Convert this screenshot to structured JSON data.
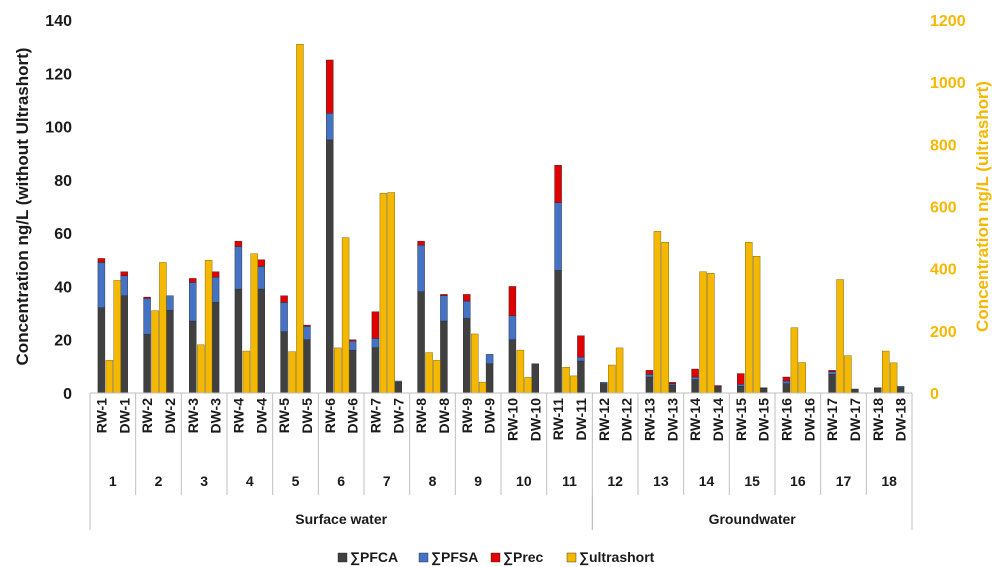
{
  "chart_data": {
    "type": "bar",
    "stacked": true,
    "dual_axis": true,
    "ylabel_left": "Concentration ng/L (without Ultrashort)",
    "ylabel_right": "Concentration ng/L (ultrashort)",
    "ylim_left": [
      0,
      140
    ],
    "ylim_right": [
      0,
      1200
    ],
    "yticks_left": [
      "0",
      "20",
      "40",
      "60",
      "80",
      "100",
      "120",
      "140"
    ],
    "yticks_right": [
      "0",
      "200",
      "400",
      "600",
      "800",
      "1000",
      "1200"
    ],
    "categories": [
      "RW-1",
      "DW-1",
      "RW-2",
      "DW-2",
      "RW-3",
      "DW-3",
      "RW-4",
      "DW-4",
      "RW-5",
      "DW-5",
      "RW-6",
      "DW-6",
      "RW-7",
      "DW-7",
      "RW-8",
      "DW-8",
      "RW-9",
      "DW-9",
      "RW-10",
      "DW-10",
      "RW-11",
      "DW-11",
      "RW-12",
      "DW-12",
      "RW-13",
      "DW-13",
      "RW-14",
      "DW-14",
      "RW-15",
      "DW-15",
      "RW-16",
      "DW-16",
      "RW-17",
      "DW-17",
      "RW-18",
      "DW-18"
    ],
    "site_labels": [
      "1",
      "2",
      "3",
      "4",
      "5",
      "6",
      "7",
      "8",
      "9",
      "10",
      "11",
      "12",
      "13",
      "14",
      "15",
      "16",
      "17",
      "18"
    ],
    "groups": [
      {
        "label": "Surface water",
        "from_site": 1,
        "to_site": 11
      },
      {
        "label": "Groundwater",
        "from_site": 12,
        "to_site": 18
      }
    ],
    "legend_position": "bottom",
    "series": [
      {
        "name": "∑PFCA",
        "axis": "left",
        "color": "#404040",
        "values": [
          32,
          36.5,
          22,
          31,
          27,
          34,
          39,
          39,
          23,
          20,
          95,
          16,
          17,
          4,
          38,
          27,
          28,
          11,
          20,
          11,
          46,
          12,
          3.5,
          0,
          6,
          3,
          5,
          2,
          2.5,
          1.8,
          3.5,
          0,
          7,
          1.5,
          1.8,
          2
        ]
      },
      {
        "name": "∑PFSA",
        "axis": "left",
        "color": "#4472c4",
        "values": [
          17,
          7.5,
          13.5,
          5.5,
          14.5,
          9.5,
          16,
          8.5,
          11,
          5,
          10,
          3.5,
          3.5,
          0.5,
          17.5,
          9.5,
          6.5,
          3.5,
          9,
          0,
          25.5,
          1.5,
          0.5,
          0,
          1,
          0.5,
          1,
          0.3,
          0.8,
          0.2,
          1,
          0,
          1,
          0,
          0.2,
          0.5
        ]
      },
      {
        "name": "∑Prec",
        "axis": "left",
        "color": "#e00000",
        "values": [
          1.5,
          1.5,
          0.5,
          0,
          1.5,
          2,
          2,
          2.5,
          2.5,
          0.5,
          20,
          0.5,
          10,
          0,
          1.5,
          0.5,
          2.5,
          0,
          11,
          0,
          14,
          8,
          0,
          0,
          1.5,
          0.5,
          3,
          0.5,
          4,
          0,
          1.5,
          0,
          0.5,
          0,
          0,
          0
        ]
      },
      {
        "name": "∑ultrashort",
        "axis": "right",
        "color": "#f5b800",
        "values": [
          105,
          362,
          265,
          420,
          155,
          427,
          135,
          448,
          133,
          1122,
          145,
          500,
          643,
          645,
          130,
          105,
          190,
          35,
          138,
          50,
          83,
          55,
          90,
          145,
          520,
          485,
          390,
          385,
          485,
          440,
          210,
          98,
          365,
          120,
          135,
          97
        ]
      }
    ]
  }
}
